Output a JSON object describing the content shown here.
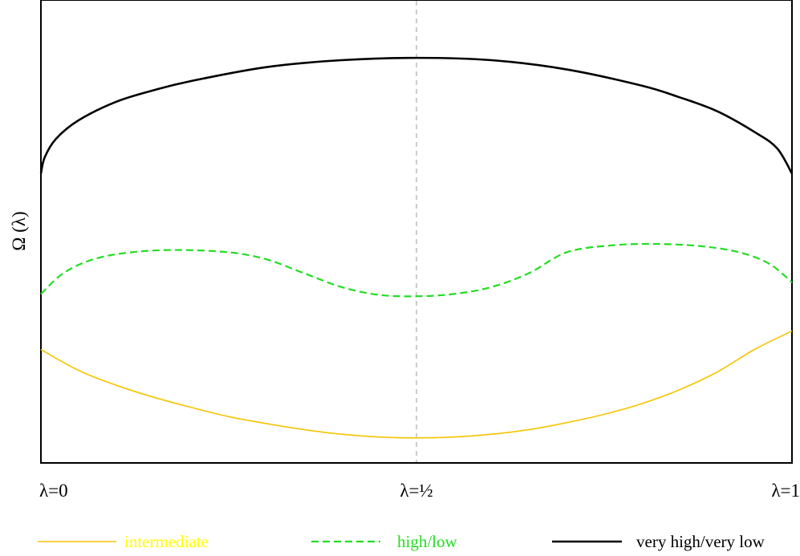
{
  "chart_data": {
    "type": "line",
    "title": "",
    "xlabel": "",
    "ylabel": "Ω (λ)",
    "xlim": [
      0,
      1
    ],
    "ylim": [
      0,
      1
    ],
    "x_ticks": [
      {
        "value": 0,
        "label": "λ=0"
      },
      {
        "value": 0.5,
        "label": "λ=½"
      },
      {
        "value": 1,
        "label": "λ=1"
      }
    ],
    "reference_line": {
      "x": 0.5,
      "style": "dashed",
      "color": "#bbbbbb"
    },
    "grid": false,
    "legend": {
      "placement": "bottom"
    },
    "series": [
      {
        "name": "intermediate",
        "color": "#f5c400",
        "label_color": "#ffff00",
        "dash": "solid",
        "width": 1.6,
        "x": [
          0,
          0.05,
          0.1,
          0.15,
          0.2,
          0.25,
          0.3,
          0.35,
          0.4,
          0.45,
          0.5,
          0.55,
          0.6,
          0.65,
          0.7,
          0.75,
          0.8,
          0.85,
          0.9,
          0.95,
          1
        ],
        "y": [
          0.245,
          0.2,
          0.168,
          0.142,
          0.12,
          0.1,
          0.085,
          0.072,
          0.062,
          0.056,
          0.054,
          0.056,
          0.062,
          0.072,
          0.087,
          0.105,
          0.128,
          0.158,
          0.196,
          0.245,
          0.285
        ]
      },
      {
        "name": "high/low",
        "color": "#22dd22",
        "label_color": "#22dd22",
        "dash": "dashed",
        "width": 2.2,
        "x": [
          0,
          0.03,
          0.07,
          0.12,
          0.18,
          0.25,
          0.3,
          0.35,
          0.4,
          0.45,
          0.5,
          0.55,
          0.6,
          0.65,
          0.7,
          0.76,
          0.82,
          0.88,
          0.93,
          0.97,
          1
        ],
        "y": [
          0.365,
          0.41,
          0.44,
          0.455,
          0.46,
          0.455,
          0.44,
          0.41,
          0.38,
          0.363,
          0.36,
          0.365,
          0.38,
          0.41,
          0.455,
          0.47,
          0.473,
          0.468,
          0.455,
          0.43,
          0.39
        ]
      },
      {
        "name": "very high/very low",
        "color": "#000000",
        "label_color": "#000000",
        "dash": "solid",
        "width": 2.6,
        "x": [
          0,
          0.005,
          0.02,
          0.05,
          0.1,
          0.15,
          0.2,
          0.3,
          0.4,
          0.5,
          0.6,
          0.7,
          0.8,
          0.85,
          0.9,
          0.95,
          0.98,
          1
        ],
        "y": [
          0.625,
          0.66,
          0.7,
          0.74,
          0.78,
          0.805,
          0.825,
          0.855,
          0.87,
          0.875,
          0.87,
          0.85,
          0.815,
          0.79,
          0.76,
          0.715,
          0.68,
          0.625
        ]
      }
    ]
  }
}
